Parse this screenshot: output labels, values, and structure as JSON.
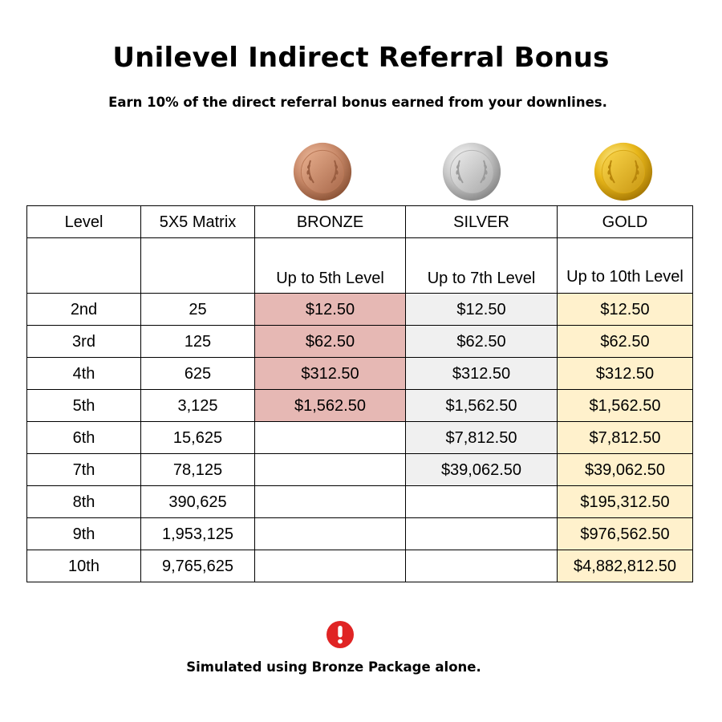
{
  "title": "Unilevel Indirect Referral Bonus",
  "subtitle": "Earn 10% of the direct referral bonus earned from your downlines.",
  "medals": [
    {
      "name": "bronze-medal-icon",
      "color": "#c98a6a"
    },
    {
      "name": "silver-medal-icon",
      "color": "#c8c8c8"
    },
    {
      "name": "gold-medal-icon",
      "color": "#e8b71a"
    }
  ],
  "colors": {
    "bronze_fill": "#e6b8b4",
    "silver_fill": "#f0f0f0",
    "gold_fill": "#fff1cc",
    "alert_red": "#e02424"
  },
  "table": {
    "headers": [
      "Level",
      "5X5 Matrix",
      "BRONZE",
      "SILVER",
      "GOLD"
    ],
    "package_descriptions": [
      "",
      "",
      "Up to 5th Level",
      "Up to 7th Level",
      "Up to 10th Level"
    ],
    "rows": [
      {
        "level": "2nd",
        "matrix": "25",
        "bronze": "$12.50",
        "silver": "$12.50",
        "gold": "$12.50"
      },
      {
        "level": "3rd",
        "matrix": "125",
        "bronze": "$62.50",
        "silver": "$62.50",
        "gold": "$62.50"
      },
      {
        "level": "4th",
        "matrix": "625",
        "bronze": "$312.50",
        "silver": "$312.50",
        "gold": "$312.50"
      },
      {
        "level": "5th",
        "matrix": "3,125",
        "bronze": "$1,562.50",
        "silver": "$1,562.50",
        "gold": "$1,562.50"
      },
      {
        "level": "6th",
        "matrix": "15,625",
        "bronze": "",
        "silver": "$7,812.50",
        "gold": "$7,812.50"
      },
      {
        "level": "7th",
        "matrix": "78,125",
        "bronze": "",
        "silver": "$39,062.50",
        "gold": "$39,062.50"
      },
      {
        "level": "8th",
        "matrix": "390,625",
        "bronze": "",
        "silver": "",
        "gold": "$195,312.50"
      },
      {
        "level": "9th",
        "matrix": "1,953,125",
        "bronze": "",
        "silver": "",
        "gold": "$976,562.50"
      },
      {
        "level": "10th",
        "matrix": "9,765,625",
        "bronze": "",
        "silver": "",
        "gold": "$4,882,812.50"
      }
    ]
  },
  "note": {
    "icon": "exclamation-alert-icon",
    "text": "Simulated using Bronze Package alone."
  }
}
